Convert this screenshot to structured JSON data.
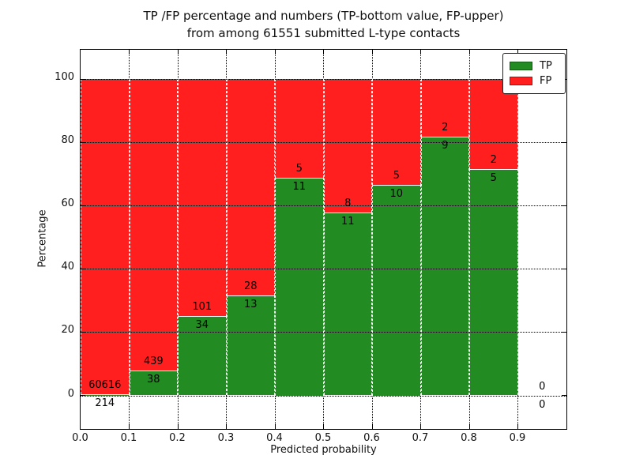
{
  "figure": {
    "title_line1": "TP /FP percentage and numbers (TP-bottom value, FP-upper)",
    "title_line2": "from among 61551 submitted L-type contacts"
  },
  "axes": {
    "xlabel": "Predicted probability",
    "ylabel": "Percentage",
    "x_tick_labels": [
      "0.0",
      "0.1",
      "0.2",
      "0.3",
      "0.4",
      "0.5",
      "0.6",
      "0.7",
      "0.8",
      "0.9"
    ],
    "y_tick_labels": [
      "0",
      "20",
      "40",
      "60",
      "80",
      "100"
    ]
  },
  "legend": {
    "items": [
      {
        "label": "TP",
        "color": "#228b22",
        "edge": "#0d5c0d"
      },
      {
        "label": "FP",
        "color": "#ff1f1f",
        "edge": "#a31111"
      }
    ]
  },
  "colors": {
    "tp_green": "#228b22",
    "fp_red": "#ff1f1f",
    "grid": "#000000",
    "background": "#ffffff"
  },
  "chart_data": {
    "type": "bar",
    "stacked": true,
    "normalized_to_percent": true,
    "title": "TP /FP percentage and numbers (TP-bottom value, FP-upper) from among 61551 submitted L-type contacts",
    "xlabel": "Predicted probability",
    "ylabel": "Percentage",
    "xlim": [
      0.0,
      1.0
    ],
    "ylim": [
      -10,
      110
    ],
    "x_bin_width": 0.1,
    "grid": "dotted",
    "legend_position": "upper right",
    "total_submitted": 61551,
    "categories": [
      "0.0-0.1",
      "0.1-0.2",
      "0.2-0.3",
      "0.3-0.4",
      "0.4-0.5",
      "0.5-0.6",
      "0.6-0.7",
      "0.7-0.8",
      "0.8-0.9",
      "0.9-1.0"
    ],
    "series": [
      {
        "name": "TP",
        "color": "#228b22",
        "counts": [
          214,
          38,
          34,
          13,
          11,
          11,
          10,
          9,
          5,
          0
        ],
        "pct": [
          0.35,
          7.97,
          25.19,
          31.71,
          68.75,
          57.89,
          66.67,
          81.82,
          71.43,
          0
        ]
      },
      {
        "name": "FP",
        "color": "#ff1f1f",
        "counts": [
          60616,
          439,
          101,
          28,
          5,
          8,
          5,
          2,
          2,
          0
        ],
        "pct": [
          99.65,
          92.03,
          74.81,
          68.29,
          31.25,
          42.11,
          33.33,
          18.18,
          28.57,
          0
        ]
      }
    ]
  }
}
